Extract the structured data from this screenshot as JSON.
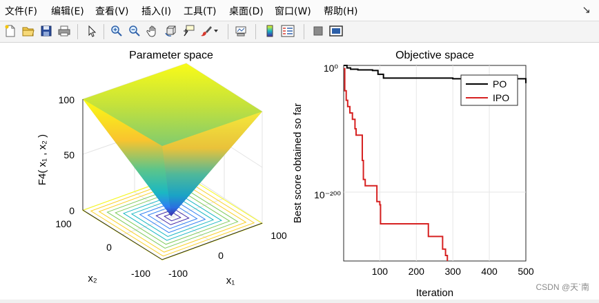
{
  "menu": {
    "items": [
      "文件(F)",
      "编辑(E)",
      "查看(V)",
      "插入(I)",
      "工具(T)",
      "桌面(D)",
      "窗口(W)",
      "帮助(H)"
    ],
    "close_glyph": "↘"
  },
  "toolbar": {
    "icons": [
      "new-file-icon",
      "open-folder-icon",
      "save-icon",
      "print-icon",
      "pointer-icon",
      "zoom-in-icon",
      "zoom-out-icon",
      "pan-icon",
      "rotate-icon",
      "data-cursor-icon",
      "brush-icon",
      "brush-dropdown-icon",
      "link-plot-icon",
      "colorbar-icon",
      "legend-icon",
      "hide-plot-tools-icon",
      "show-plot-tools-icon"
    ]
  },
  "left_plot": {
    "title": "Parameter space",
    "zlabel": "F4( x₁ , x₂ )",
    "xlabel": "x₁",
    "ylabel": "x₂",
    "zticks": [
      "100",
      "50",
      "0"
    ],
    "xticks": [
      "-100",
      "0",
      "100"
    ],
    "yticks": [
      "100",
      "0",
      "-100"
    ],
    "colormap": [
      "#3e26a8",
      "#2f7ff2",
      "#1ab7c3",
      "#7fcb5c",
      "#f9d12b",
      "#f9fb15"
    ]
  },
  "chart_data": {
    "type": "line",
    "title": "Objective space",
    "xlabel": "Iteration",
    "ylabel": "Best score obtained so far",
    "xlim": [
      1,
      500
    ],
    "y_scale": "log",
    "xticks": [
      "100",
      "200",
      "300",
      "400",
      "500"
    ],
    "yticks": [
      "10⁰",
      "10⁻²⁰⁰"
    ],
    "legend_position": "top-right",
    "series": [
      {
        "name": "PO",
        "color": "#000000",
        "x": [
          1,
          10,
          20,
          40,
          80,
          95,
          110,
          150,
          200,
          300,
          400,
          490,
          500
        ],
        "log10_y": [
          0,
          -4,
          -6,
          -7,
          -8,
          -14,
          -20,
          -20,
          -20,
          -21,
          -21,
          -21,
          -28
        ]
      },
      {
        "name": "IPO",
        "color": "#d62020",
        "x": [
          1,
          4,
          8,
          12,
          18,
          25,
          32,
          35,
          40,
          45,
          52,
          55,
          60,
          88,
          92,
          100,
          102,
          230,
          233,
          268,
          272,
          280,
          285
        ],
        "log10_y": [
          -5,
          -40,
          -55,
          -65,
          -75,
          -85,
          -100,
          -110,
          -110,
          -110,
          -150,
          -180,
          -190,
          -190,
          -215,
          -220,
          -250,
          -250,
          -270,
          -270,
          -290,
          -300,
          -310
        ]
      }
    ]
  },
  "watermark": "CSDN @天`南"
}
